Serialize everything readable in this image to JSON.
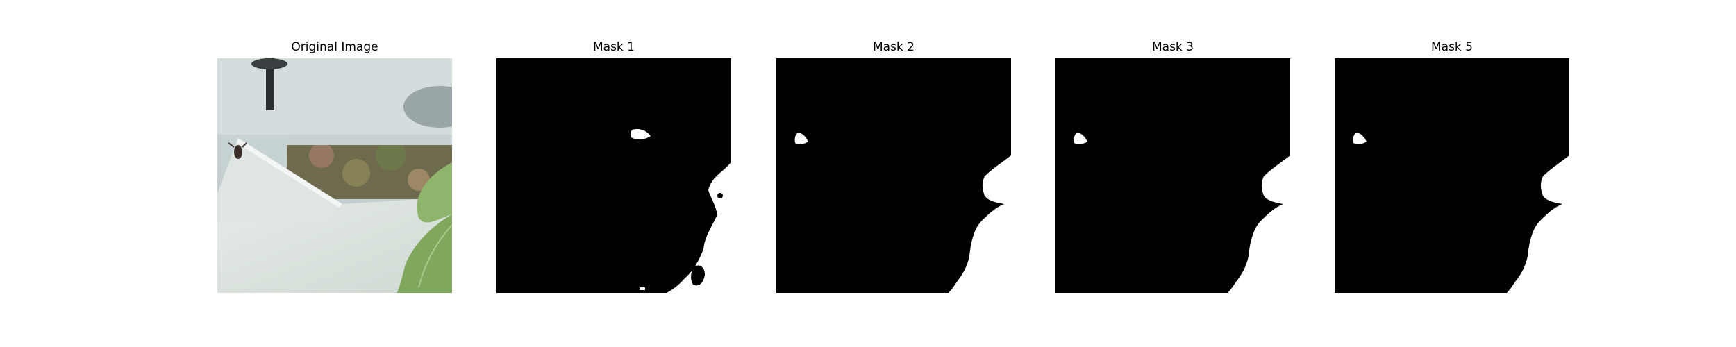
{
  "figure": {
    "panels": [
      {
        "title": "Original Image"
      },
      {
        "title": "Mask 1"
      },
      {
        "title": "Mask 2"
      },
      {
        "title": "Mask 3"
      },
      {
        "title": "Mask 5"
      }
    ]
  },
  "colors": {
    "background": "#ffffff",
    "mask_background": "#000000",
    "mask_foreground": "#ffffff",
    "leaf": "#7fa85c",
    "paper": "#e3e7e4",
    "cross_bar": "#c8d2d4"
  }
}
